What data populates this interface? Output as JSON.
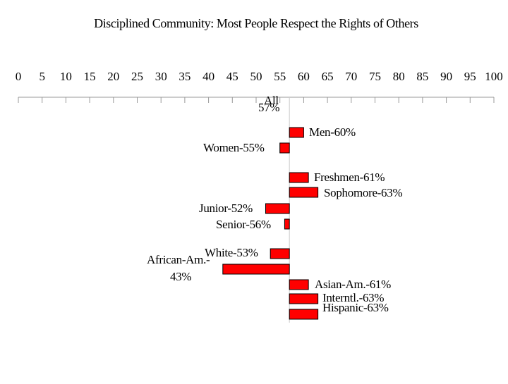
{
  "chart_data": {
    "type": "bar",
    "orientation": "diverging-horizontal",
    "title": "Disciplined Community: Most People Respect the Rights of Others",
    "xlabel": "",
    "ylabel": "",
    "xlim": [
      0,
      100
    ],
    "baseline": 57,
    "grid": false,
    "legend": "none",
    "tick_labels": [
      "0",
      "5",
      "10",
      "15",
      "20",
      "25",
      "30",
      "35",
      "40",
      "45",
      "50",
      "55",
      "60",
      "65",
      "70",
      "75",
      "80",
      "85",
      "90",
      "95",
      "100"
    ],
    "bar_color": "#ff0000",
    "bar_outline": "#000000",
    "categories": [
      "All",
      "Men",
      "Women",
      "Freshmen",
      "Sophomore",
      "Junior",
      "Senior",
      "White",
      "African-Am.",
      "Asian-Am.",
      "Interntl.",
      "Hispanic"
    ],
    "values": [
      57,
      60,
      55,
      61,
      63,
      52,
      56,
      53,
      43,
      61,
      63,
      63
    ],
    "labels": [
      [
        "57%",
        "All"
      ],
      [
        "Men-60%"
      ],
      [
        "Women-55%"
      ],
      [
        "Freshmen-61%"
      ],
      [
        "Sophomore-63%"
      ],
      [
        "Junior-52%"
      ],
      [
        "Senior-56%"
      ],
      [
        "White-53%"
      ],
      [
        "African-Am.-",
        "43%"
      ],
      [
        "Asian-Am.-61%"
      ],
      [
        "Interntl.-63%"
      ],
      [
        "Hispanic-63%"
      ]
    ]
  }
}
